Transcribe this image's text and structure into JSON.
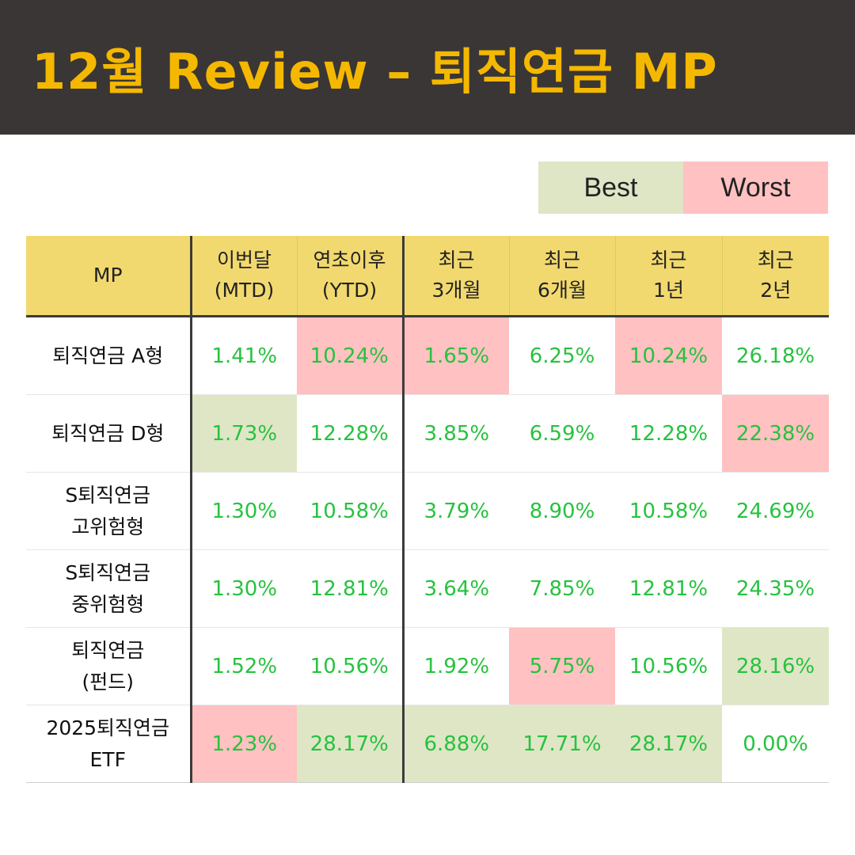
{
  "title": "12월 Review – 퇴직연금 MP",
  "legend": {
    "best": "Best",
    "worst": "Worst"
  },
  "colors": {
    "header_bg": "#3a3635",
    "title": "#f5b800",
    "table_header": "#f2d96f",
    "best": "#dfe6c6",
    "worst": "#ffc1c1",
    "value_text": "#27c23f"
  },
  "table": {
    "headers": [
      {
        "line1": "MP",
        "line2": ""
      },
      {
        "line1": "이번달",
        "line2": "(MTD)"
      },
      {
        "line1": "연초이후",
        "line2": "(YTD)"
      },
      {
        "line1": "최근",
        "line2": "3개월"
      },
      {
        "line1": "최근",
        "line2": "6개월"
      },
      {
        "line1": "최근",
        "line2": "1년"
      },
      {
        "line1": "최근",
        "line2": "2년"
      }
    ],
    "rows": [
      {
        "name1": "퇴직연금 A형",
        "name2": "",
        "cells": [
          {
            "value": "1.41%",
            "mark": ""
          },
          {
            "value": "10.24%",
            "mark": "worst"
          },
          {
            "value": "1.65%",
            "mark": "worst"
          },
          {
            "value": "6.25%",
            "mark": ""
          },
          {
            "value": "10.24%",
            "mark": "worst"
          },
          {
            "value": "26.18%",
            "mark": ""
          }
        ]
      },
      {
        "name1": "퇴직연금 D형",
        "name2": "",
        "cells": [
          {
            "value": "1.73%",
            "mark": "best"
          },
          {
            "value": "12.28%",
            "mark": ""
          },
          {
            "value": "3.85%",
            "mark": ""
          },
          {
            "value": "6.59%",
            "mark": ""
          },
          {
            "value": "12.28%",
            "mark": ""
          },
          {
            "value": "22.38%",
            "mark": "worst"
          }
        ]
      },
      {
        "name1": "S퇴직연금",
        "name2": "고위험형",
        "cells": [
          {
            "value": "1.30%",
            "mark": ""
          },
          {
            "value": "10.58%",
            "mark": ""
          },
          {
            "value": "3.79%",
            "mark": ""
          },
          {
            "value": "8.90%",
            "mark": ""
          },
          {
            "value": "10.58%",
            "mark": ""
          },
          {
            "value": "24.69%",
            "mark": ""
          }
        ]
      },
      {
        "name1": "S퇴직연금",
        "name2": "중위험형",
        "cells": [
          {
            "value": "1.30%",
            "mark": ""
          },
          {
            "value": "12.81%",
            "mark": ""
          },
          {
            "value": "3.64%",
            "mark": ""
          },
          {
            "value": "7.85%",
            "mark": ""
          },
          {
            "value": "12.81%",
            "mark": ""
          },
          {
            "value": "24.35%",
            "mark": ""
          }
        ]
      },
      {
        "name1": "퇴직연금",
        "name2": "(펀드)",
        "cells": [
          {
            "value": "1.52%",
            "mark": ""
          },
          {
            "value": "10.56%",
            "mark": ""
          },
          {
            "value": "1.92%",
            "mark": ""
          },
          {
            "value": "5.75%",
            "mark": "worst"
          },
          {
            "value": "10.56%",
            "mark": ""
          },
          {
            "value": "28.16%",
            "mark": "best"
          }
        ]
      },
      {
        "name1": "2025퇴직연금",
        "name2": "ETF",
        "cells": [
          {
            "value": "1.23%",
            "mark": "worst"
          },
          {
            "value": "28.17%",
            "mark": "best"
          },
          {
            "value": "6.88%",
            "mark": "best"
          },
          {
            "value": "17.71%",
            "mark": "best"
          },
          {
            "value": "28.17%",
            "mark": "best"
          },
          {
            "value": "0.00%",
            "mark": ""
          }
        ]
      }
    ]
  }
}
